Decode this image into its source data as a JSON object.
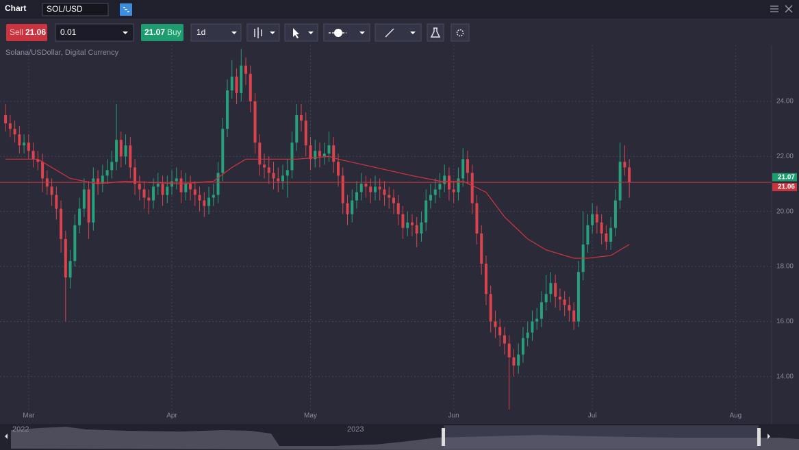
{
  "toolbar": {
    "title": "Chart",
    "symbol": "SOL/USD",
    "sell_label": "Sell",
    "sell_price": "21.06",
    "quantity": "0.01",
    "buy_price": "21.07",
    "buy_label": "Buy",
    "timeframe": "1d"
  },
  "chart_data": {
    "type": "candlestick",
    "subtitle": "Solana/USDollar, Digital Currency",
    "up_color": "#26a17b",
    "down_color": "#d9444e",
    "ohlc": [
      [
        23.5,
        23.9,
        22.9,
        23.2
      ],
      [
        23.2,
        23.5,
        22.7,
        23.0
      ],
      [
        23.0,
        23.3,
        22.5,
        22.8
      ],
      [
        22.8,
        23.1,
        22.1,
        22.4
      ],
      [
        22.4,
        22.8,
        22.1,
        22.5
      ],
      [
        22.5,
        22.8,
        21.9,
        22.2
      ],
      [
        22.2,
        22.5,
        21.6,
        21.9
      ],
      [
        21.9,
        22.2,
        21.5,
        21.8
      ],
      [
        21.8,
        22.1,
        20.7,
        21.2
      ],
      [
        21.2,
        21.5,
        20.6,
        20.9
      ],
      [
        20.9,
        21.2,
        20.2,
        20.6
      ],
      [
        20.6,
        20.9,
        19.7,
        20.1
      ],
      [
        20.1,
        20.4,
        18.5,
        19.0
      ],
      [
        19.0,
        19.3,
        16.0,
        17.6
      ],
      [
        17.6,
        18.6,
        17.2,
        18.2
      ],
      [
        18.2,
        19.9,
        18.0,
        19.5
      ],
      [
        19.5,
        20.5,
        19.2,
        20.1
      ],
      [
        20.1,
        21.2,
        19.8,
        20.8
      ],
      [
        20.8,
        21.1,
        19.0,
        19.6
      ],
      [
        19.6,
        21.6,
        19.3,
        21.2
      ],
      [
        21.2,
        21.5,
        20.6,
        21.0
      ],
      [
        21.0,
        21.7,
        20.7,
        21.3
      ],
      [
        21.3,
        21.9,
        21.0,
        21.5
      ],
      [
        21.5,
        22.2,
        21.2,
        21.8
      ],
      [
        21.8,
        23.9,
        21.5,
        22.6
      ],
      [
        22.6,
        22.9,
        21.6,
        22.0
      ],
      [
        22.0,
        22.8,
        21.7,
        22.4
      ],
      [
        22.4,
        22.7,
        21.2,
        21.6
      ],
      [
        21.6,
        21.9,
        20.6,
        21.0
      ],
      [
        21.0,
        21.3,
        20.4,
        20.8
      ],
      [
        20.8,
        21.1,
        20.1,
        20.5
      ],
      [
        20.5,
        20.8,
        19.9,
        20.4
      ],
      [
        20.4,
        21.2,
        20.1,
        20.9
      ],
      [
        20.9,
        21.4,
        20.6,
        21.0
      ],
      [
        21.0,
        21.3,
        20.2,
        20.6
      ],
      [
        20.6,
        21.3,
        20.3,
        20.9
      ],
      [
        20.9,
        21.5,
        20.6,
        21.1
      ],
      [
        21.1,
        21.6,
        20.8,
        21.2
      ],
      [
        21.2,
        21.5,
        20.3,
        20.7
      ],
      [
        20.7,
        21.4,
        20.4,
        21.0
      ],
      [
        21.0,
        21.3,
        20.4,
        20.8
      ],
      [
        20.8,
        21.1,
        20.2,
        20.6
      ],
      [
        20.6,
        20.9,
        20.0,
        20.4
      ],
      [
        20.4,
        20.7,
        19.8,
        20.2
      ],
      [
        20.2,
        20.9,
        19.9,
        20.5
      ],
      [
        20.5,
        21.0,
        20.2,
        20.6
      ],
      [
        20.6,
        21.8,
        20.3,
        21.4
      ],
      [
        21.4,
        23.4,
        21.1,
        23.0
      ],
      [
        23.0,
        24.8,
        22.7,
        24.4
      ],
      [
        24.4,
        25.5,
        24.1,
        24.9
      ],
      [
        24.9,
        25.2,
        23.9,
        24.3
      ],
      [
        24.3,
        25.9,
        24.0,
        25.3
      ],
      [
        25.3,
        25.6,
        24.6,
        25.0
      ],
      [
        25.0,
        25.3,
        23.6,
        24.0
      ],
      [
        24.0,
        24.3,
        22.1,
        22.5
      ],
      [
        22.5,
        22.8,
        21.3,
        21.7
      ],
      [
        21.7,
        22.1,
        21.2,
        21.6
      ],
      [
        21.6,
        22.0,
        21.0,
        21.4
      ],
      [
        21.4,
        21.8,
        20.8,
        21.2
      ],
      [
        21.2,
        21.6,
        20.7,
        21.1
      ],
      [
        21.1,
        21.7,
        20.8,
        21.3
      ],
      [
        21.3,
        21.9,
        20.5,
        21.5
      ],
      [
        21.5,
        22.9,
        21.2,
        22.5
      ],
      [
        22.5,
        23.9,
        22.2,
        23.5
      ],
      [
        23.5,
        23.9,
        22.9,
        23.3
      ],
      [
        23.3,
        23.6,
        22.0,
        22.4
      ],
      [
        22.4,
        22.7,
        21.5,
        21.9
      ],
      [
        21.9,
        22.6,
        21.6,
        22.2
      ],
      [
        22.2,
        22.5,
        21.6,
        22.0
      ],
      [
        22.0,
        22.5,
        21.7,
        22.1
      ],
      [
        22.1,
        22.9,
        21.8,
        22.4
      ],
      [
        22.4,
        22.7,
        21.4,
        21.8
      ],
      [
        21.8,
        22.1,
        20.9,
        21.3
      ],
      [
        21.3,
        21.6,
        19.9,
        20.3
      ],
      [
        20.3,
        20.6,
        19.5,
        19.9
      ],
      [
        19.9,
        20.8,
        19.6,
        20.4
      ],
      [
        20.4,
        21.1,
        20.1,
        20.7
      ],
      [
        20.7,
        21.4,
        20.4,
        21.0
      ],
      [
        21.0,
        21.3,
        20.5,
        20.9
      ],
      [
        20.9,
        21.2,
        20.3,
        20.7
      ],
      [
        20.7,
        21.3,
        20.4,
        20.9
      ],
      [
        20.9,
        21.2,
        20.4,
        20.8
      ],
      [
        20.8,
        21.1,
        20.2,
        20.6
      ],
      [
        20.6,
        20.9,
        20.1,
        20.5
      ],
      [
        20.5,
        20.8,
        19.9,
        20.3
      ],
      [
        20.3,
        20.6,
        19.5,
        19.9
      ],
      [
        19.9,
        20.2,
        19.0,
        19.4
      ],
      [
        19.4,
        20.0,
        19.1,
        19.6
      ],
      [
        19.6,
        19.9,
        19.1,
        19.5
      ],
      [
        19.5,
        19.8,
        18.7,
        19.2
      ],
      [
        19.2,
        20.0,
        18.9,
        19.6
      ],
      [
        19.6,
        20.8,
        19.3,
        20.4
      ],
      [
        20.4,
        21.0,
        20.1,
        20.6
      ],
      [
        20.6,
        21.2,
        20.3,
        20.8
      ],
      [
        20.8,
        21.4,
        20.5,
        21.0
      ],
      [
        21.0,
        21.7,
        20.7,
        21.3
      ],
      [
        21.3,
        21.6,
        20.4,
        20.8
      ],
      [
        20.8,
        21.1,
        20.3,
        20.7
      ],
      [
        20.7,
        21.6,
        20.4,
        21.2
      ],
      [
        21.2,
        22.3,
        20.9,
        21.9
      ],
      [
        21.9,
        22.2,
        21.0,
        21.4
      ],
      [
        21.4,
        21.7,
        19.9,
        20.3
      ],
      [
        20.3,
        20.6,
        18.8,
        19.2
      ],
      [
        19.2,
        19.5,
        17.7,
        18.1
      ],
      [
        18.1,
        18.4,
        16.6,
        17.0
      ],
      [
        17.0,
        17.3,
        15.6,
        16.0
      ],
      [
        16.0,
        16.4,
        15.4,
        15.8
      ],
      [
        15.8,
        16.1,
        15.1,
        15.5
      ],
      [
        15.5,
        15.8,
        14.8,
        15.2
      ],
      [
        15.2,
        15.5,
        12.8,
        14.7
      ],
      [
        14.7,
        15.0,
        14.0,
        14.4
      ],
      [
        14.4,
        15.2,
        14.1,
        14.8
      ],
      [
        14.8,
        15.8,
        14.5,
        15.4
      ],
      [
        15.4,
        16.0,
        15.1,
        15.6
      ],
      [
        15.6,
        16.4,
        15.3,
        16.0
      ],
      [
        16.0,
        16.5,
        15.7,
        16.1
      ],
      [
        16.1,
        17.1,
        15.8,
        16.7
      ],
      [
        16.7,
        17.7,
        16.4,
        17.0
      ],
      [
        17.0,
        17.8,
        16.7,
        17.4
      ],
      [
        17.4,
        17.7,
        16.5,
        16.9
      ],
      [
        16.9,
        17.2,
        16.4,
        16.8
      ],
      [
        16.8,
        17.1,
        16.2,
        16.6
      ],
      [
        16.6,
        16.9,
        16.0,
        16.4
      ],
      [
        16.4,
        16.7,
        15.7,
        16.0
      ],
      [
        16.0,
        18.2,
        15.8,
        17.8
      ],
      [
        17.8,
        20.0,
        17.5,
        18.8
      ],
      [
        18.8,
        19.9,
        18.5,
        19.5
      ],
      [
        19.5,
        20.3,
        19.2,
        19.9
      ],
      [
        19.9,
        20.2,
        19.2,
        19.6
      ],
      [
        19.6,
        19.9,
        18.8,
        19.2
      ],
      [
        19.2,
        19.5,
        18.6,
        18.9
      ],
      [
        18.9,
        19.8,
        18.6,
        19.4
      ],
      [
        19.4,
        20.8,
        19.1,
        20.4
      ],
      [
        20.4,
        22.5,
        20.1,
        21.8
      ],
      [
        21.8,
        22.4,
        21.3,
        21.6
      ],
      [
        21.6,
        21.9,
        20.5,
        21.06
      ]
    ],
    "ma": {
      "color": "#c9343f",
      "x": [
        0,
        7,
        14,
        20,
        26,
        38,
        45,
        49,
        52,
        63,
        70,
        72,
        80,
        88,
        94,
        99,
        104,
        108,
        113,
        117,
        123,
        126,
        131,
        135
      ],
      "values": [
        21.9,
        21.9,
        21.2,
        21.0,
        21.1,
        21.0,
        21.1,
        21.6,
        21.9,
        21.9,
        22.0,
        21.9,
        21.6,
        21.3,
        21.1,
        21.1,
        20.7,
        19.8,
        19.0,
        18.6,
        18.3,
        18.3,
        18.4,
        18.8
      ]
    },
    "price_lines": [
      {
        "value": 21.07,
        "color": "#1f9c6f"
      },
      {
        "value": 21.06,
        "color": "#c9343f"
      }
    ],
    "xlim": [
      -1.2,
      165.8
    ],
    "xticks": [
      {
        "value": 5,
        "label": "Mar"
      },
      {
        "value": 36,
        "label": "Apr"
      },
      {
        "value": 66,
        "label": "May"
      },
      {
        "value": 97,
        "label": "Jun"
      },
      {
        "value": 127,
        "label": "Jul"
      },
      {
        "value": 158,
        "label": "Aug"
      }
    ],
    "ylim": [
      12.8,
      26.04
    ],
    "yticks": [
      {
        "value": 14,
        "label": "14.00"
      },
      {
        "value": 16,
        "label": "16.00"
      },
      {
        "value": 18,
        "label": "18.00"
      },
      {
        "value": 20,
        "label": "20.00"
      },
      {
        "value": 22,
        "label": "22.00"
      },
      {
        "value": 24,
        "label": "24.00"
      }
    ],
    "grid": true
  },
  "navigator": {
    "labels": [
      "2022",
      "2023"
    ]
  }
}
